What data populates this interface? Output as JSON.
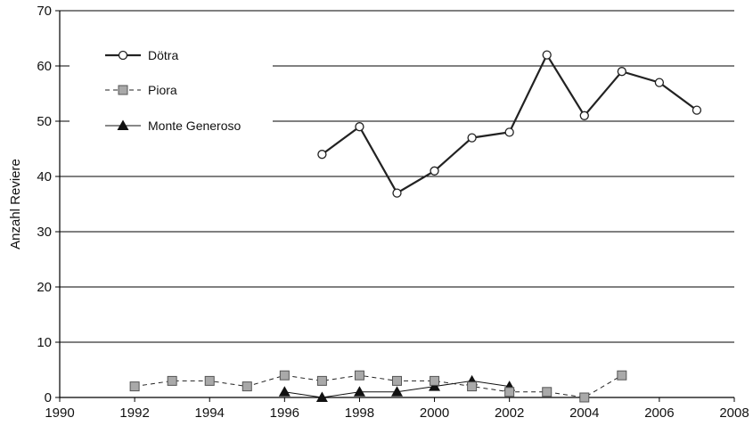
{
  "chart_data": {
    "type": "line",
    "title": "",
    "xlabel": "",
    "ylabel": "Anzahl Reviere",
    "xlim": [
      1990,
      2008
    ],
    "ylim": [
      0,
      70
    ],
    "xticks": [
      1990,
      1992,
      1994,
      1996,
      1998,
      2000,
      2002,
      2004,
      2006,
      2008
    ],
    "yticks": [
      0,
      10,
      20,
      30,
      40,
      50,
      60,
      70
    ],
    "grid": "horizontal",
    "legend_position": "top-left",
    "series": [
      {
        "name": "Dötra",
        "marker": "circle-open",
        "line": "solid-thick",
        "color": "#222222",
        "x": [
          1997,
          1998,
          1999,
          2000,
          2001,
          2002,
          2003,
          2004,
          2005,
          2006,
          2007
        ],
        "values": [
          44,
          49,
          37,
          41,
          47,
          48,
          62,
          51,
          59,
          57,
          52
        ]
      },
      {
        "name": "Piora",
        "marker": "square-grey",
        "line": "dashed",
        "color": "#222222",
        "x": [
          1992,
          1993,
          1994,
          1995,
          1996,
          1997,
          1998,
          1999,
          2000,
          2001,
          2002,
          2003,
          2004,
          2005
        ],
        "values": [
          2,
          3,
          3,
          2,
          4,
          3,
          4,
          3,
          3,
          2,
          1,
          1,
          0,
          4
        ]
      },
      {
        "name": "Monte Generoso",
        "marker": "triangle-filled",
        "line": "solid-thin",
        "color": "#111111",
        "x": [
          1996,
          1997,
          1998,
          1999,
          2000,
          2001,
          2002
        ],
        "values": [
          1,
          0,
          1,
          1,
          2,
          3,
          2
        ]
      }
    ]
  }
}
